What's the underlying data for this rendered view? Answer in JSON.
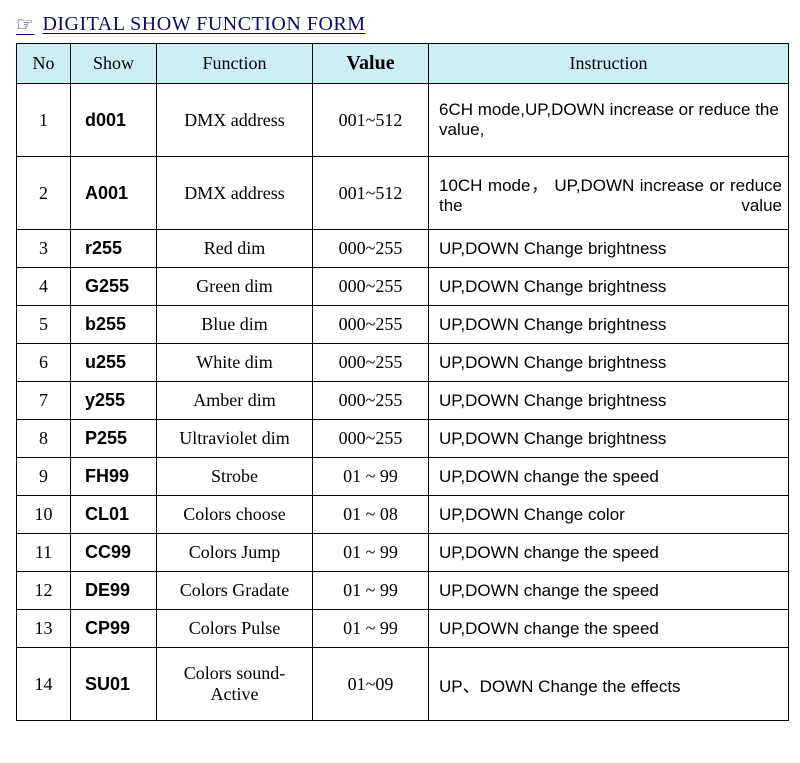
{
  "title": "DIGITAL SHOW FUNCTION FORM",
  "columns": [
    "No",
    "Show",
    "Function",
    "Value",
    "Instruction"
  ],
  "rows": [
    {
      "no": "1",
      "show": "d001",
      "function": "DMX address",
      "value": "001~512",
      "instruction": "6CH mode,UP,DOWN increase or reduce the value,",
      "tall": true,
      "just": false
    },
    {
      "no": "2",
      "show": "A001",
      "function": "DMX address",
      "value": "001~512",
      "instruction": "10CH   mode，  UP,DOWN increase or reduce the value",
      "tall": true,
      "just": true
    },
    {
      "no": "3",
      "show": "r255",
      "function": "Red dim",
      "value": "000~255",
      "instruction": "UP,DOWN Change brightness",
      "tall": false,
      "just": false
    },
    {
      "no": "4",
      "show": "G255",
      "function": "Green dim",
      "value": "000~255",
      "instruction": "UP,DOWN Change brightness",
      "tall": false,
      "just": false
    },
    {
      "no": "5",
      "show": "b255",
      "function": "Blue   dim",
      "value": "000~255",
      "instruction": "UP,DOWN Change brightness",
      "tall": false,
      "just": false
    },
    {
      "no": "6",
      "show": "u255",
      "function": "White dim",
      "value": "000~255",
      "instruction": "UP,DOWN Change brightness",
      "tall": false,
      "just": false
    },
    {
      "no": "7",
      "show": "y255",
      "function": "Amber dim",
      "value": "000~255",
      "instruction": "UP,DOWN Change brightness",
      "tall": false,
      "just": false
    },
    {
      "no": "8",
      "show": "P255",
      "function": "Ultraviolet dim",
      "value": "000~255",
      "instruction": "UP,DOWN Change brightness",
      "tall": false,
      "just": false
    },
    {
      "no": "9",
      "show": "FH99",
      "function": "Strobe",
      "value": "01 ~ 99",
      "instruction": "UP,DOWN change the speed",
      "tall": false,
      "just": false
    },
    {
      "no": "10",
      "show": "CL01",
      "function": "Colors choose",
      "value": "01 ~ 08",
      "instruction": "UP,DOWN Change color",
      "tall": false,
      "just": false
    },
    {
      "no": "11",
      "show": "CC99",
      "function": "Colors Jump",
      "value": "01 ~ 99",
      "instruction": "UP,DOWN change the speed",
      "tall": false,
      "just": false
    },
    {
      "no": "12",
      "show": "DE99",
      "function": "Colors Gradate",
      "value": "01 ~ 99",
      "instruction": "UP,DOWN change the speed",
      "tall": false,
      "just": false
    },
    {
      "no": "13",
      "show": "CP99",
      "function": "Colors Pulse",
      "value": "01 ~ 99",
      "instruction": "UP,DOWN change the speed",
      "tall": false,
      "just": false
    },
    {
      "no": "14",
      "show": "SU01",
      "function": "Colors sound-Active",
      "value": "01~09",
      "instruction": "UP、DOWN Change the effects",
      "tall": true,
      "just": false
    }
  ]
}
